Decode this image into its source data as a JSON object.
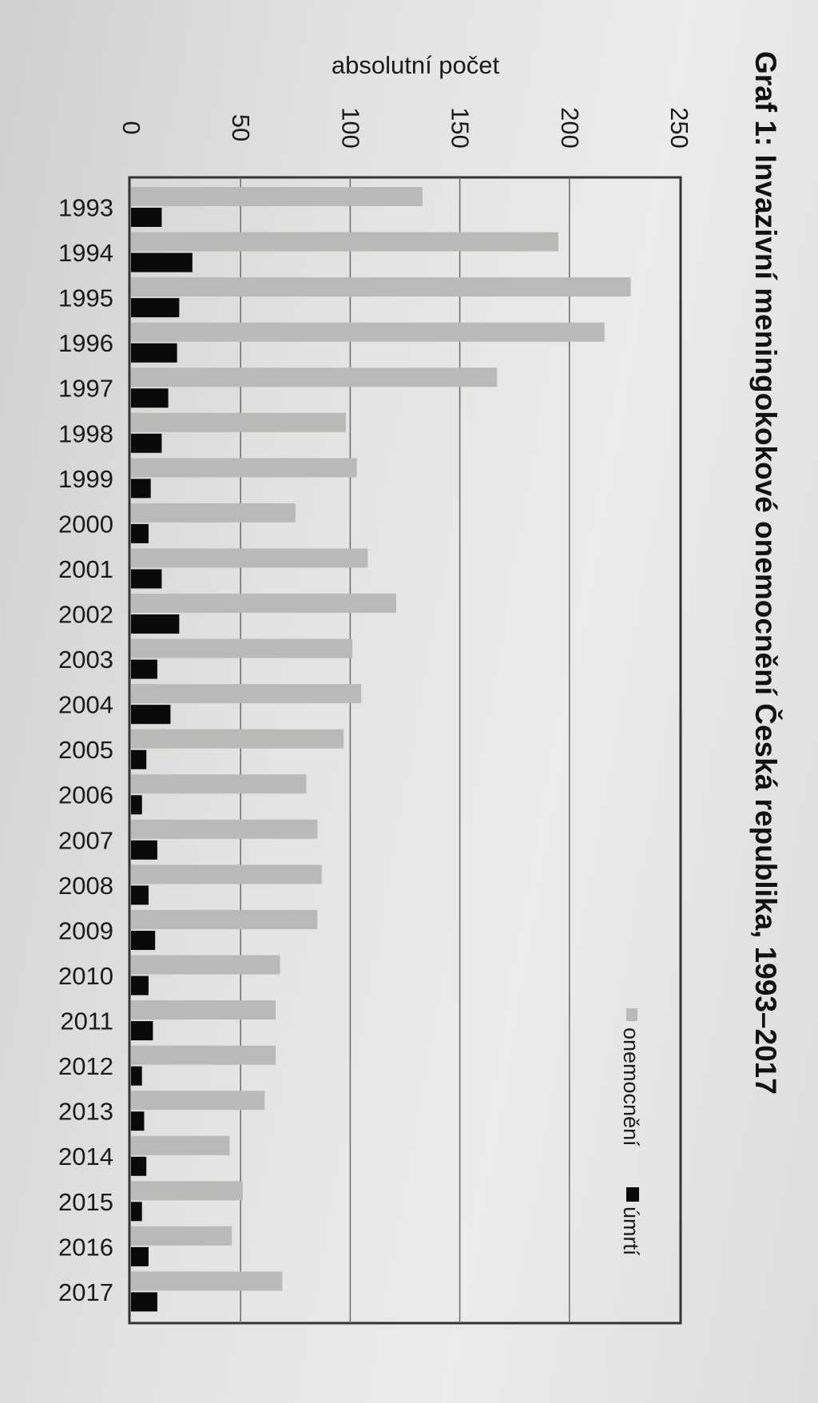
{
  "chart_data": {
    "type": "bar",
    "title": "Graf 1: Invazivní meningokokové onemocnění Česká republika, 1993–2017",
    "ylabel": "absolutní počet",
    "xlabel": "",
    "ylim": [
      0,
      250
    ],
    "yticks": [
      "0",
      "50",
      "100",
      "150",
      "200",
      "250"
    ],
    "categories": [
      "1993",
      "1994",
      "1995",
      "1996",
      "1997",
      "1998",
      "1999",
      "2000",
      "2001",
      "2002",
      "2003",
      "2004",
      "2005",
      "2006",
      "2007",
      "2008",
      "2009",
      "2010",
      "2011",
      "2012",
      "2013",
      "2014",
      "2015",
      "2016",
      "2017"
    ],
    "series": [
      {
        "name": "onemocnění",
        "color": "#b9b9b7",
        "values": [
          133,
          195,
          228,
          216,
          167,
          98,
          103,
          75,
          108,
          121,
          101,
          105,
          97,
          80,
          85,
          87,
          85,
          68,
          66,
          66,
          61,
          45,
          51,
          46,
          69
        ]
      },
      {
        "name": "úmrtí",
        "color": "#0a0a0a",
        "values": [
          14,
          28,
          22,
          21,
          17,
          14,
          9,
          8,
          14,
          22,
          12,
          18,
          7,
          5,
          12,
          8,
          11,
          8,
          10,
          5,
          6,
          7,
          5,
          8,
          12
        ]
      }
    ],
    "orientation": "horizontal-rotated",
    "grid": true,
    "legend": "bottom-right"
  }
}
